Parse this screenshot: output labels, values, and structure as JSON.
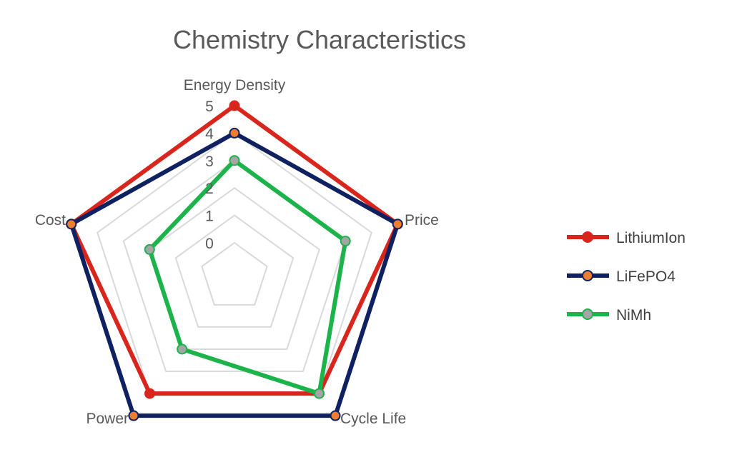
{
  "chart_data": {
    "type": "radar",
    "title": "Chemistry Characteristics",
    "categories": [
      "Energy Density",
      "Price",
      "Cycle Life",
      "Power",
      "Cost"
    ],
    "tick_labels": [
      "0",
      "1",
      "2",
      "3",
      "4",
      "5"
    ],
    "rlim": [
      0,
      5
    ],
    "grid": true,
    "legend_position": "right",
    "series": [
      {
        "name": "LithiumIon",
        "values": [
          5,
          5,
          4,
          4,
          5
        ],
        "line_color": "#d9261c",
        "marker_color": "#d9261c"
      },
      {
        "name": "LiFePO4",
        "values": [
          4,
          5,
          5,
          5,
          5
        ],
        "line_color": "#0f2160",
        "marker_color": "#ed7d31"
      },
      {
        "name": "NiMh",
        "values": [
          3,
          3,
          4,
          2,
          2
        ],
        "line_color": "#1cb34a",
        "marker_color": "#a5a5a5"
      }
    ]
  }
}
